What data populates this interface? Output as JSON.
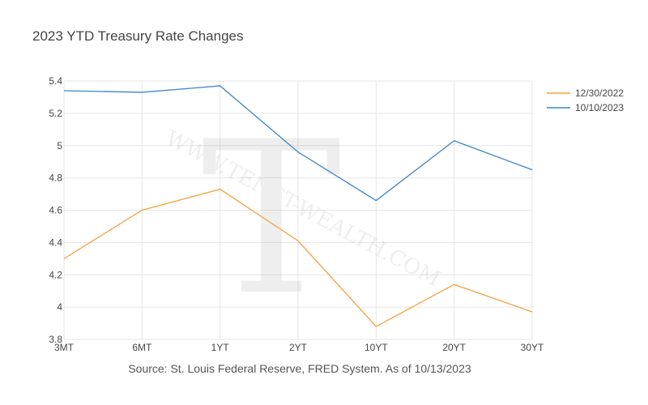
{
  "title": "2023 YTD Treasury Rate Changes",
  "source_note": "Source: St. Louis Federal Reserve, FRED System.  As of 10/13/2023",
  "watermark": "WWW.TENET-WEALTH.COM",
  "chart_data": {
    "type": "line",
    "title": "2023 YTD Treasury Rate Changes",
    "xlabel": "",
    "ylabel": "",
    "categories": [
      "3MT",
      "6MT",
      "1YT",
      "2YT",
      "10YT",
      "20YT",
      "30YT"
    ],
    "ylim": [
      3.8,
      5.4
    ],
    "yticks": [
      3.8,
      4,
      4.2,
      4.4,
      4.6,
      4.8,
      5,
      5.2,
      5.4
    ],
    "ytick_labels": [
      "3.8",
      "4",
      "4.2",
      "4.4",
      "4.6",
      "4.8",
      "5",
      "5.2",
      "5.4"
    ],
    "grid": true,
    "legend_position": "top-right",
    "series": [
      {
        "name": "12/30/2022",
        "color": "#f7a03d",
        "values": [
          4.3,
          4.6,
          4.73,
          4.41,
          3.88,
          4.14,
          3.97
        ]
      },
      {
        "name": "10/10/2023",
        "color": "#3d85c6",
        "values": [
          5.34,
          5.33,
          5.37,
          4.96,
          4.66,
          5.03,
          4.85
        ]
      }
    ]
  }
}
